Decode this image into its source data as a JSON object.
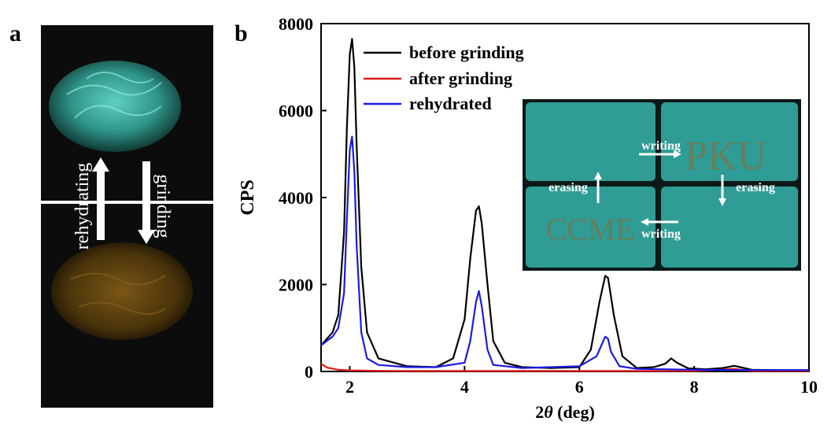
{
  "panel_a": {
    "letter": "a",
    "photo_top_label": "",
    "arrow_up_label": "rehydrating",
    "arrow_down_label": "grinding",
    "colors": {
      "top_sample": "#3ea89a",
      "bottom_sample": "#6b4a10",
      "background": "#0c0c0c"
    }
  },
  "panel_b": {
    "letter": "b",
    "inset": {
      "writing_top": "writing",
      "writing_bottom": "writing",
      "erasing_left": "erasing",
      "erasing_right": "erasing",
      "text_top_right": "PKU",
      "text_bottom_left": "CCME",
      "colors": {
        "tile": "#2f9c95",
        "ink": "#6f7a55"
      }
    }
  },
  "chart_data": {
    "type": "line",
    "title": "",
    "xlabel_prefix": "2",
    "xlabel_theta": "θ",
    "xlabel_suffix": " (deg)",
    "ylabel": "CPS",
    "xlim": [
      1.5,
      10
    ],
    "ylim": [
      0,
      8000
    ],
    "xticks": [
      2,
      4,
      6,
      8,
      10
    ],
    "yticks": [
      0,
      2000,
      4000,
      6000,
      8000
    ],
    "legend_position": "top-left",
    "grid": false,
    "series": [
      {
        "name": "before grinding",
        "color": "#000000",
        "x": [
          1.5,
          1.6,
          1.7,
          1.8,
          1.9,
          1.95,
          2.0,
          2.04,
          2.08,
          2.12,
          2.2,
          2.3,
          2.5,
          3.0,
          3.5,
          3.8,
          4.0,
          4.1,
          4.2,
          4.25,
          4.3,
          4.4,
          4.5,
          4.7,
          5.0,
          5.5,
          6.0,
          6.2,
          6.35,
          6.45,
          6.5,
          6.6,
          6.75,
          7.0,
          7.3,
          7.5,
          7.6,
          7.7,
          7.9,
          8.2,
          8.5,
          8.7,
          8.8,
          9.0,
          9.5,
          10.0
        ],
        "y": [
          600,
          750,
          900,
          1300,
          3200,
          5600,
          7300,
          7650,
          7000,
          5200,
          2400,
          900,
          300,
          120,
          100,
          300,
          1200,
          2600,
          3700,
          3800,
          3400,
          2000,
          700,
          200,
          100,
          80,
          100,
          500,
          1600,
          2200,
          2150,
          1300,
          350,
          80,
          100,
          180,
          300,
          200,
          70,
          50,
          80,
          130,
          100,
          40,
          30,
          30
        ]
      },
      {
        "name": "after grinding",
        "color": "#e11b1b",
        "x": [
          1.5,
          1.6,
          1.8,
          2.0,
          2.5,
          3.0,
          4.0,
          5.0,
          6.0,
          7.0,
          8.0,
          8.7,
          9.0,
          10.0
        ],
        "y": [
          180,
          90,
          40,
          25,
          15,
          10,
          10,
          10,
          10,
          10,
          10,
          60,
          10,
          10
        ]
      },
      {
        "name": "rehydrated",
        "color": "#1b1be0",
        "x": [
          1.5,
          1.6,
          1.7,
          1.8,
          1.9,
          1.95,
          2.0,
          2.04,
          2.08,
          2.12,
          2.2,
          2.3,
          2.5,
          3.0,
          3.5,
          4.0,
          4.1,
          4.2,
          4.25,
          4.3,
          4.4,
          4.5,
          5.0,
          6.0,
          6.3,
          6.45,
          6.5,
          6.55,
          6.7,
          7.0,
          8.0,
          9.0,
          10.0
        ],
        "y": [
          600,
          700,
          800,
          1000,
          1800,
          3500,
          5100,
          5400,
          4600,
          2900,
          900,
          300,
          150,
          100,
          100,
          200,
          700,
          1600,
          1850,
          1500,
          500,
          150,
          80,
          120,
          350,
          800,
          750,
          450,
          120,
          60,
          40,
          30,
          30
        ]
      }
    ]
  }
}
